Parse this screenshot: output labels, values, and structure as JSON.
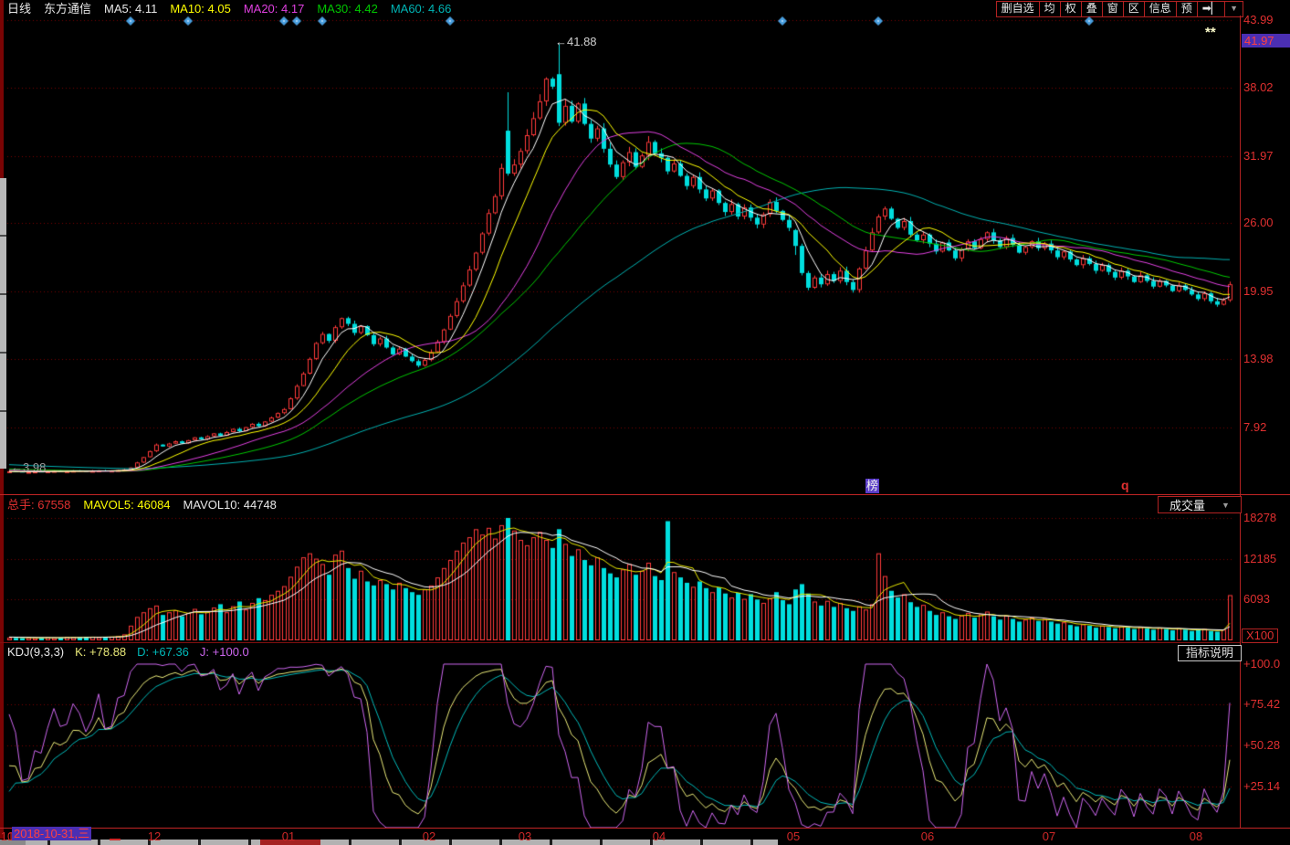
{
  "header": {
    "period": "日线",
    "name": "东方通信",
    "ma5": "MA5: 4.11",
    "ma10": "MA10: 4.05",
    "ma20": "MA20: 4.17",
    "ma30": "MA30: 4.42",
    "ma60": "MA60: 4.66"
  },
  "toolbar": {
    "buttons": [
      "删自选",
      "均",
      "权",
      "叠",
      "窗",
      "区",
      "信息",
      "预"
    ],
    "next_icon": "➡▏",
    "dropdown_icon": "▼"
  },
  "main_chart": {
    "price_axis_labels": [
      "43.99",
      "38.02",
      "31.97",
      "26.00",
      "19.95",
      "13.98",
      "7.92"
    ],
    "last_price_badge": "41.97",
    "peak_annotation": "←41.88",
    "low_annotation": "←3.98",
    "flag_stars": "**",
    "rank_badge": "榜",
    "q_mark": "q"
  },
  "volume_panel": {
    "total_label": "总手: 67558",
    "mavol5_label": "MAVOL5: 46084",
    "mavol10_label": "MAVOL10: 44748",
    "selector": "成交量",
    "axis_labels": [
      "18278",
      "12185",
      "6093"
    ],
    "unit_badge": "X100"
  },
  "kdj_panel": {
    "title": "KDJ(9,3,3)",
    "k_label": "K: +78.88",
    "d_label": "D: +67.36",
    "j_label": "J: +100.0",
    "help_button": "指标说明",
    "axis_labels": [
      "+100.0",
      "+75.42",
      "+50.28",
      "+25.14"
    ]
  },
  "bottom_axis": {
    "date_box": "2018-10-31,三",
    "months": [
      {
        "label": "10",
        "idx": 0
      },
      {
        "label": "11",
        "idx": 1
      },
      {
        "label": "12",
        "idx": 23
      },
      {
        "label": "01",
        "idx": 44
      },
      {
        "label": "02",
        "idx": 66
      },
      {
        "label": "03",
        "idx": 81
      },
      {
        "label": "04",
        "idx": 102
      },
      {
        "label": "05",
        "idx": 123
      },
      {
        "label": "06",
        "idx": 144
      },
      {
        "label": "07",
        "idx": 163
      },
      {
        "label": "08",
        "idx": 186
      }
    ]
  },
  "chart_data": {
    "type": "candlestick",
    "title": "东方通信 日线 (2018-10-31 ~ 2019-08)",
    "price_axis_values": [
      43.99,
      38.02,
      31.97,
      26.0,
      19.95,
      13.98,
      7.92
    ],
    "volume_axis_values": [
      18278,
      12185,
      6093
    ],
    "kdj_axis_values": [
      100.0,
      75.42,
      50.28,
      25.14
    ],
    "peak_price": 41.88,
    "low_price": 3.98,
    "open_first": 4.02,
    "open_overrides": {
      "78": 34.2,
      "86": 39.2,
      "123": 25.4,
      "191": 19.2
    },
    "high_overrides": {
      "78": 37.6,
      "86": 41.88
    },
    "low_overrides": {
      "2": 3.98,
      "86": 34.6,
      "123": 23.2
    },
    "closes": [
      4.05,
      4.02,
      3.98,
      4.0,
      4.03,
      4.01,
      4.05,
      4.08,
      4.04,
      4.06,
      4.1,
      4.07,
      4.05,
      4.09,
      4.12,
      4.08,
      4.11,
      4.15,
      4.21,
      4.38,
      4.82,
      5.3,
      5.83,
      6.41,
      6.25,
      6.5,
      6.7,
      6.52,
      6.8,
      7.05,
      6.88,
      7.15,
      7.4,
      7.2,
      7.52,
      7.8,
      7.6,
      7.95,
      8.25,
      8.05,
      8.45,
      8.8,
      9.2,
      9.55,
      10.5,
      11.6,
      12.7,
      14.0,
      15.4,
      16.2,
      15.6,
      16.8,
      17.6,
      17.1,
      16.3,
      16.9,
      16.1,
      15.3,
      15.8,
      15.0,
      14.4,
      14.9,
      14.2,
      13.8,
      13.4,
      13.9,
      14.6,
      15.5,
      16.6,
      17.8,
      19.1,
      20.5,
      21.9,
      23.4,
      25.1,
      26.9,
      28.4,
      30.9,
      30.4,
      31.2,
      32.4,
      33.8,
      35.3,
      36.8,
      38.8,
      38.1,
      34.9,
      36.4,
      35.0,
      36.6,
      34.8,
      33.5,
      34.4,
      32.6,
      31.2,
      30.1,
      31.4,
      32.3,
      31.0,
      32.0,
      33.2,
      32.2,
      31.8,
      30.6,
      31.3,
      30.2,
      29.3,
      30.1,
      29.0,
      28.2,
      28.9,
      27.8,
      27.0,
      27.7,
      26.6,
      27.4,
      26.5,
      25.9,
      26.8,
      27.9,
      27.1,
      26.3,
      25.6,
      24.0,
      21.6,
      20.3,
      21.2,
      20.6,
      21.5,
      20.9,
      21.8,
      20.8,
      20.1,
      22.0,
      23.6,
      25.2,
      26.6,
      27.3,
      26.4,
      25.6,
      26.2,
      25.0,
      24.5,
      25.0,
      24.2,
      23.5,
      24.3,
      23.6,
      22.9,
      23.7,
      24.4,
      23.8,
      24.6,
      25.2,
      24.5,
      23.9,
      24.7,
      24.1,
      23.4,
      23.9,
      24.4,
      23.8,
      24.2,
      23.6,
      23.0,
      23.5,
      22.8,
      22.3,
      22.9,
      22.4,
      21.8,
      22.3,
      21.7,
      21.2,
      21.8,
      21.3,
      20.8,
      21.4,
      20.9,
      20.4,
      20.9,
      20.5,
      20.0,
      20.5,
      20.1,
      19.7,
      19.3,
      19.8,
      19.1,
      18.8,
      19.2,
      20.6
    ],
    "volumes": [
      420,
      380,
      350,
      400,
      360,
      390,
      450,
      370,
      410,
      520,
      460,
      430,
      480,
      550,
      470,
      500,
      560,
      640,
      900,
      2200,
      3500,
      4200,
      4800,
      5200,
      3800,
      4200,
      4500,
      3600,
      4100,
      4700,
      3900,
      4300,
      4900,
      5400,
      4200,
      5100,
      5800,
      4600,
      5600,
      6300,
      6000,
      6800,
      7400,
      8100,
      9500,
      11000,
      12400,
      13000,
      12200,
      11400,
      9800,
      12800,
      13400,
      10800,
      9200,
      10400,
      8800,
      8200,
      9000,
      8400,
      7600,
      8600,
      7800,
      7200,
      6800,
      7600,
      8200,
      9400,
      10800,
      12000,
      13400,
      14600,
      15400,
      16600,
      15800,
      16800,
      15200,
      17200,
      18278,
      16400,
      15000,
      14200,
      15400,
      16200,
      15000,
      13800,
      16600,
      14400,
      12600,
      13600,
      12000,
      11200,
      12400,
      10800,
      10000,
      9400,
      10600,
      11400,
      9800,
      10400,
      11600,
      9600,
      9000,
      17800,
      10200,
      9400,
      8600,
      8000,
      8800,
      7800,
      7200,
      7900,
      7000,
      6400,
      7100,
      6200,
      6900,
      6100,
      5600,
      6300,
      7200,
      6000,
      5400,
      7600,
      8400,
      7000,
      5800,
      5200,
      5900,
      5000,
      5600,
      4800,
      4400,
      5100,
      4600,
      5400,
      13000,
      9600,
      7400,
      6400,
      6900,
      5700,
      5000,
      5300,
      4400,
      3800,
      4200,
      3600,
      3200,
      3700,
      4100,
      3400,
      3900,
      4300,
      3600,
      3100,
      3700,
      3200,
      2800,
      3100,
      3400,
      2900,
      3200,
      2800,
      2500,
      2700,
      2300,
      2100,
      2400,
      2200,
      1900,
      2200,
      2000,
      1800,
      2100,
      1900,
      1700,
      2000,
      1800,
      1600,
      1900,
      1700,
      1500,
      1800,
      1600,
      1400,
      1500,
      1700,
      1400,
      1300,
      1600,
      6756
    ],
    "pre_closes": [
      5.52,
      5.48,
      5.45,
      5.4,
      5.38,
      5.35,
      5.3,
      5.28,
      5.25,
      5.22,
      5.18,
      5.15,
      5.12,
      5.08,
      5.05,
      5.02,
      4.98,
      4.95,
      4.92,
      4.88,
      4.85,
      4.82,
      4.8,
      4.78,
      4.75,
      4.72,
      4.7,
      4.68,
      4.65,
      4.62,
      4.6,
      4.58,
      4.55,
      4.52,
      4.5,
      4.48,
      4.46,
      4.44,
      4.42,
      4.4,
      4.38,
      4.36,
      4.34,
      4.32,
      4.3,
      4.28,
      4.26,
      4.24,
      4.22,
      4.2,
      4.1,
      4.08,
      4.05,
      4.02,
      4.0,
      3.99,
      4.0,
      4.02,
      4.03,
      4.04
    ],
    "pre_volume": 500,
    "event_marker_indices": [
      19,
      28,
      43,
      45,
      49,
      69,
      121,
      136,
      169
    ],
    "colors": {
      "up": "#ff3a3a",
      "down": "#00dede",
      "ma5": "#ffffff",
      "ma10": "#ffff00",
      "ma20": "#e040e0",
      "ma30": "#00c800",
      "ma60": "#00b0b0",
      "mavol5": "#e8e800",
      "mavol10": "#ffffff",
      "k": "#e8e878",
      "d": "#00b8b8",
      "j": "#cc66ee",
      "grid": "#7a0000",
      "frame": "#b22222",
      "marker": "#4a9fe0"
    }
  }
}
